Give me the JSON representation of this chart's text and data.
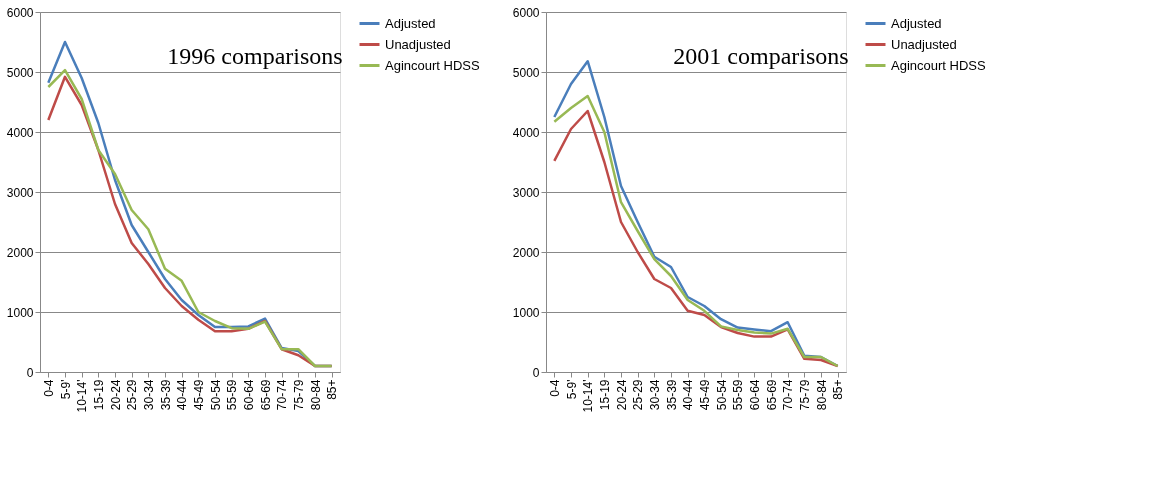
{
  "chart_data": [
    {
      "type": "line",
      "title": "1996 comparisons",
      "categories": [
        "0-4",
        "5-9'",
        "10-14'",
        "15-19",
        "20-24",
        "25-29",
        "30-34",
        "35-39",
        "40-44",
        "45-49",
        "50-54",
        "55-59",
        "60-64",
        "65-69",
        "70-74",
        "75-79",
        "80-84",
        "85+"
      ],
      "series": [
        {
          "name": "Adjusted",
          "color": "#4a7ebb",
          "values": [
            4820,
            5500,
            4900,
            4150,
            3200,
            2450,
            2000,
            1550,
            1200,
            950,
            750,
            750,
            760,
            890,
            400,
            350,
            100,
            100
          ]
        },
        {
          "name": "Unadjusted",
          "color": "#be4b48",
          "values": [
            4200,
            4920,
            4450,
            3700,
            2800,
            2150,
            1800,
            1400,
            1100,
            870,
            680,
            680,
            720,
            850,
            380,
            280,
            100,
            100
          ]
        },
        {
          "name": "Agincourt HDSS",
          "color": "#98b954",
          "values": [
            4750,
            5030,
            4550,
            3700,
            3300,
            2700,
            2380,
            1720,
            1520,
            1000,
            850,
            730,
            720,
            840,
            380,
            380,
            100,
            100
          ]
        }
      ],
      "ylim": [
        0,
        6000
      ],
      "yticks": [
        0,
        1000,
        2000,
        3000,
        4000,
        5000,
        6000
      ],
      "grid": "y",
      "legend": "right",
      "marker": "none",
      "line_style": "solid"
    },
    {
      "type": "line",
      "title": "2001 comparisons",
      "categories": [
        "0-4",
        "5-9'",
        "10-14'",
        "15-19",
        "20-24",
        "25-29",
        "30-34",
        "35-39",
        "40-44",
        "45-49",
        "50-54",
        "55-59",
        "60-64",
        "65-69",
        "70-74",
        "75-79",
        "80-84",
        "85+"
      ],
      "series": [
        {
          "name": "Adjusted",
          "color": "#4a7ebb",
          "values": [
            4250,
            4800,
            5180,
            4250,
            3100,
            2500,
            1920,
            1750,
            1250,
            1100,
            880,
            740,
            710,
            680,
            830,
            270,
            250,
            100
          ]
        },
        {
          "name": "Unadjusted",
          "color": "#be4b48",
          "values": [
            3520,
            4050,
            4350,
            3500,
            2500,
            2000,
            1550,
            1400,
            1020,
            950,
            750,
            650,
            590,
            590,
            710,
            220,
            200,
            100
          ]
        },
        {
          "name": "Agincourt HDSS",
          "color": "#98b954",
          "values": [
            4170,
            4400,
            4600,
            4000,
            2830,
            2350,
            1880,
            1600,
            1200,
            1020,
            760,
            700,
            660,
            640,
            720,
            250,
            250,
            100
          ]
        }
      ],
      "ylim": [
        0,
        6000
      ],
      "yticks": [
        0,
        1000,
        2000,
        3000,
        4000,
        5000,
        6000
      ],
      "grid": "y",
      "legend": "right",
      "marker": "none",
      "line_style": "solid"
    }
  ]
}
